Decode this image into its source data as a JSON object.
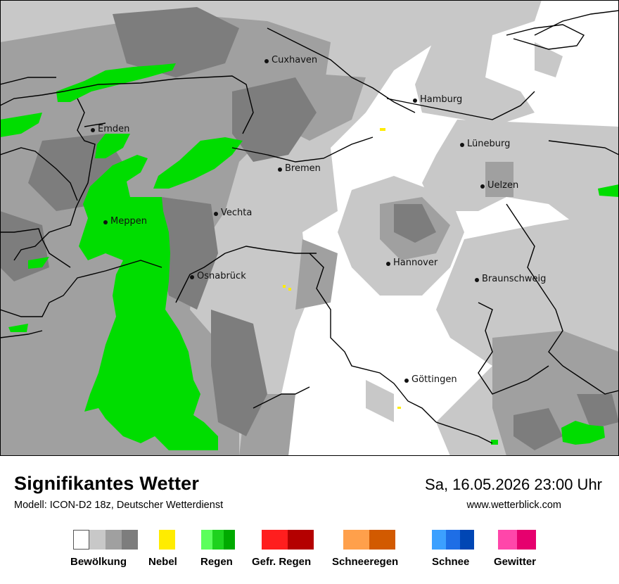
{
  "map": {
    "cities": [
      {
        "name": "Cuxhaven"
      },
      {
        "name": "Hamburg"
      },
      {
        "name": "Emden"
      },
      {
        "name": "Lüneburg"
      },
      {
        "name": "Bremen"
      },
      {
        "name": "Uelzen"
      },
      {
        "name": "Vechta"
      },
      {
        "name": "Meppen"
      },
      {
        "name": "Hannover"
      },
      {
        "name": "Osnabrück"
      },
      {
        "name": "Braunschweig"
      },
      {
        "name": "Göttingen"
      }
    ]
  },
  "header": {
    "title": "Signifikantes Wetter",
    "model": "Modell: ICON-D2 18z, Deutscher Wetterdienst",
    "datetime": "Sa, 16.05.2026 23:00 Uhr",
    "website": "www.wetterblick.com"
  },
  "legend": [
    {
      "label": "Bewölkung",
      "colors": [
        "#ffffff",
        "#c8c8c8",
        "#a0a0a0",
        "#7d7d7d"
      ]
    },
    {
      "label": "Nebel",
      "colors": [
        "#ffec00"
      ]
    },
    {
      "label": "Regen",
      "colors": [
        "#5cff5c",
        "#1ed21e",
        "#00aa00"
      ]
    },
    {
      "label": "Gefr. Regen",
      "colors": [
        "#ff1e1e",
        "#b40000"
      ]
    },
    {
      "label": "Schneeregen",
      "colors": [
        "#ffa04b",
        "#d25a00"
      ]
    },
    {
      "label": "Schnee",
      "colors": [
        "#3ca0ff",
        "#1e6ee6",
        "#0046b4"
      ]
    },
    {
      "label": "Gewitter",
      "colors": [
        "#ff46aa",
        "#e6006e"
      ]
    }
  ]
}
